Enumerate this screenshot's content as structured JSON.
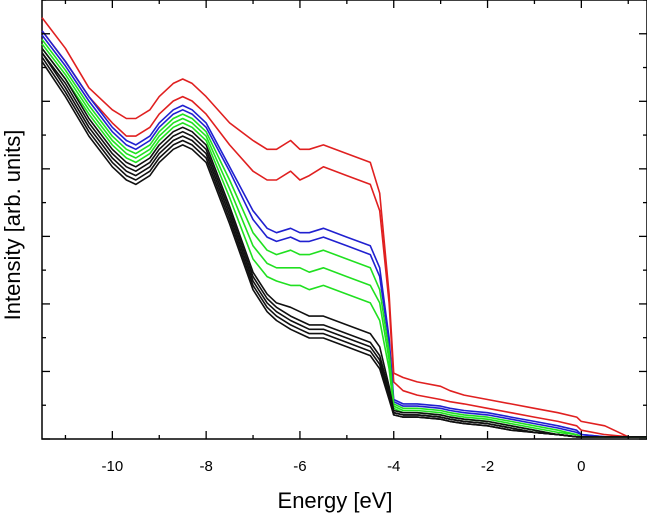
{
  "chart_data": {
    "type": "line",
    "title": "",
    "xlabel": "Energy [eV]",
    "ylabel": "Intensity [arb. units]",
    "xlim": [
      -11.5,
      1.4
    ],
    "ylim": [
      0,
      1
    ],
    "x_ticks": [
      -10,
      -8,
      -6,
      -4,
      -2,
      0
    ],
    "x_tick_labels": [
      "-10",
      "-8",
      "-6",
      "-4",
      "-2",
      "0"
    ],
    "y_tick_labels_shown": false,
    "grid": false,
    "legend": "none",
    "x": [
      -11.5,
      -11.0,
      -10.5,
      -10.0,
      -9.7,
      -9.5,
      -9.2,
      -9.0,
      -8.7,
      -8.5,
      -8.3,
      -8.0,
      -7.5,
      -7.0,
      -6.7,
      -6.5,
      -6.2,
      -6.0,
      -5.8,
      -5.5,
      -5.0,
      -4.5,
      -4.3,
      -4.1,
      -4.0,
      -3.8,
      -3.5,
      -3.0,
      -2.8,
      -2.5,
      -2.0,
      -1.5,
      -1.0,
      -0.5,
      -0.1,
      0.0,
      0.5,
      1.0,
      1.4
    ],
    "series": [
      {
        "color": "#e02020",
        "values": [
          0.96,
          0.89,
          0.8,
          0.75,
          0.73,
          0.73,
          0.75,
          0.78,
          0.81,
          0.82,
          0.81,
          0.78,
          0.72,
          0.68,
          0.66,
          0.66,
          0.68,
          0.66,
          0.66,
          0.67,
          0.65,
          0.63,
          0.56,
          0.33,
          0.15,
          0.14,
          0.13,
          0.12,
          0.11,
          0.1,
          0.09,
          0.08,
          0.07,
          0.06,
          0.05,
          0.04,
          0.03,
          0.005,
          0.005
        ]
      },
      {
        "color": "#e02020",
        "values": [
          0.93,
          0.86,
          0.78,
          0.72,
          0.69,
          0.69,
          0.71,
          0.74,
          0.77,
          0.78,
          0.77,
          0.74,
          0.67,
          0.61,
          0.59,
          0.59,
          0.61,
          0.59,
          0.6,
          0.62,
          0.6,
          0.58,
          0.52,
          0.31,
          0.13,
          0.11,
          0.1,
          0.09,
          0.085,
          0.08,
          0.07,
          0.06,
          0.05,
          0.04,
          0.03,
          0.02,
          0.01,
          0.005,
          0.005
        ]
      },
      {
        "color": "#2020d0",
        "values": [
          0.93,
          0.86,
          0.78,
          0.71,
          0.68,
          0.67,
          0.69,
          0.72,
          0.75,
          0.76,
          0.75,
          0.72,
          0.62,
          0.52,
          0.48,
          0.47,
          0.48,
          0.47,
          0.47,
          0.48,
          0.46,
          0.44,
          0.39,
          0.23,
          0.09,
          0.08,
          0.08,
          0.075,
          0.07,
          0.065,
          0.06,
          0.05,
          0.04,
          0.03,
          0.02,
          0.01,
          0.005,
          0.005,
          0.005
        ]
      },
      {
        "color": "#2020d0",
        "values": [
          0.92,
          0.85,
          0.77,
          0.7,
          0.67,
          0.66,
          0.68,
          0.71,
          0.74,
          0.75,
          0.74,
          0.71,
          0.61,
          0.5,
          0.46,
          0.45,
          0.46,
          0.45,
          0.45,
          0.46,
          0.44,
          0.42,
          0.37,
          0.22,
          0.085,
          0.075,
          0.075,
          0.07,
          0.065,
          0.06,
          0.055,
          0.045,
          0.035,
          0.025,
          0.015,
          0.01,
          0.005,
          0.005,
          0.005
        ]
      },
      {
        "color": "#20e020",
        "values": [
          0.91,
          0.84,
          0.76,
          0.69,
          0.66,
          0.65,
          0.67,
          0.7,
          0.73,
          0.74,
          0.73,
          0.7,
          0.59,
          0.47,
          0.43,
          0.42,
          0.43,
          0.42,
          0.42,
          0.43,
          0.41,
          0.39,
          0.34,
          0.2,
          0.08,
          0.07,
          0.07,
          0.065,
          0.06,
          0.055,
          0.05,
          0.04,
          0.03,
          0.02,
          0.01,
          0.005,
          0.005,
          0.005,
          0.005
        ]
      },
      {
        "color": "#20e020",
        "values": [
          0.9,
          0.83,
          0.75,
          0.68,
          0.65,
          0.64,
          0.66,
          0.69,
          0.72,
          0.73,
          0.72,
          0.69,
          0.57,
          0.44,
          0.4,
          0.39,
          0.39,
          0.39,
          0.38,
          0.39,
          0.37,
          0.35,
          0.31,
          0.18,
          0.075,
          0.065,
          0.065,
          0.06,
          0.055,
          0.05,
          0.045,
          0.035,
          0.025,
          0.015,
          0.01,
          0.005,
          0.005,
          0.005,
          0.005
        ]
      },
      {
        "color": "#20e020",
        "values": [
          0.89,
          0.82,
          0.74,
          0.67,
          0.64,
          0.63,
          0.65,
          0.68,
          0.71,
          0.72,
          0.71,
          0.68,
          0.55,
          0.41,
          0.37,
          0.36,
          0.35,
          0.35,
          0.34,
          0.35,
          0.33,
          0.31,
          0.27,
          0.16,
          0.07,
          0.06,
          0.06,
          0.055,
          0.05,
          0.045,
          0.04,
          0.03,
          0.02,
          0.01,
          0.005,
          0.005,
          0.005,
          0.005,
          0.005
        ]
      },
      {
        "color": "#101010",
        "values": [
          0.89,
          0.82,
          0.73,
          0.66,
          0.63,
          0.62,
          0.64,
          0.67,
          0.7,
          0.71,
          0.7,
          0.67,
          0.53,
          0.38,
          0.33,
          0.31,
          0.3,
          0.29,
          0.28,
          0.28,
          0.26,
          0.24,
          0.21,
          0.12,
          0.065,
          0.06,
          0.06,
          0.055,
          0.05,
          0.045,
          0.04,
          0.03,
          0.02,
          0.01,
          0.005,
          0.005,
          0.005,
          0.005,
          0.005
        ]
      },
      {
        "color": "#101010",
        "values": [
          0.88,
          0.81,
          0.72,
          0.65,
          0.62,
          0.61,
          0.63,
          0.66,
          0.69,
          0.7,
          0.69,
          0.66,
          0.52,
          0.37,
          0.32,
          0.3,
          0.28,
          0.27,
          0.26,
          0.26,
          0.24,
          0.22,
          0.19,
          0.11,
          0.06,
          0.055,
          0.055,
          0.05,
          0.045,
          0.04,
          0.035,
          0.025,
          0.015,
          0.01,
          0.005,
          0.005,
          0.005,
          0.005,
          0.005
        ]
      },
      {
        "color": "#101010",
        "values": [
          0.88,
          0.8,
          0.71,
          0.64,
          0.61,
          0.6,
          0.62,
          0.65,
          0.68,
          0.69,
          0.68,
          0.65,
          0.51,
          0.36,
          0.31,
          0.29,
          0.27,
          0.26,
          0.25,
          0.25,
          0.23,
          0.21,
          0.18,
          0.1,
          0.06,
          0.055,
          0.055,
          0.05,
          0.045,
          0.04,
          0.035,
          0.025,
          0.015,
          0.01,
          0.005,
          0.005,
          0.005,
          0.005,
          0.005
        ]
      },
      {
        "color": "#101010",
        "values": [
          0.87,
          0.79,
          0.7,
          0.63,
          0.6,
          0.59,
          0.61,
          0.64,
          0.67,
          0.68,
          0.67,
          0.64,
          0.5,
          0.35,
          0.3,
          0.28,
          0.26,
          0.25,
          0.24,
          0.24,
          0.22,
          0.2,
          0.17,
          0.095,
          0.055,
          0.05,
          0.05,
          0.045,
          0.04,
          0.035,
          0.03,
          0.02,
          0.015,
          0.01,
          0.005,
          0.005,
          0.005,
          0.005,
          0.005
        ]
      },
      {
        "color": "#101010",
        "values": [
          0.86,
          0.78,
          0.69,
          0.62,
          0.59,
          0.58,
          0.6,
          0.63,
          0.66,
          0.67,
          0.66,
          0.63,
          0.49,
          0.34,
          0.29,
          0.27,
          0.25,
          0.24,
          0.23,
          0.23,
          0.21,
          0.19,
          0.16,
          0.09,
          0.055,
          0.05,
          0.05,
          0.045,
          0.04,
          0.035,
          0.03,
          0.02,
          0.015,
          0.01,
          0.005,
          0.005,
          0.005,
          0.005,
          0.005
        ]
      }
    ]
  }
}
